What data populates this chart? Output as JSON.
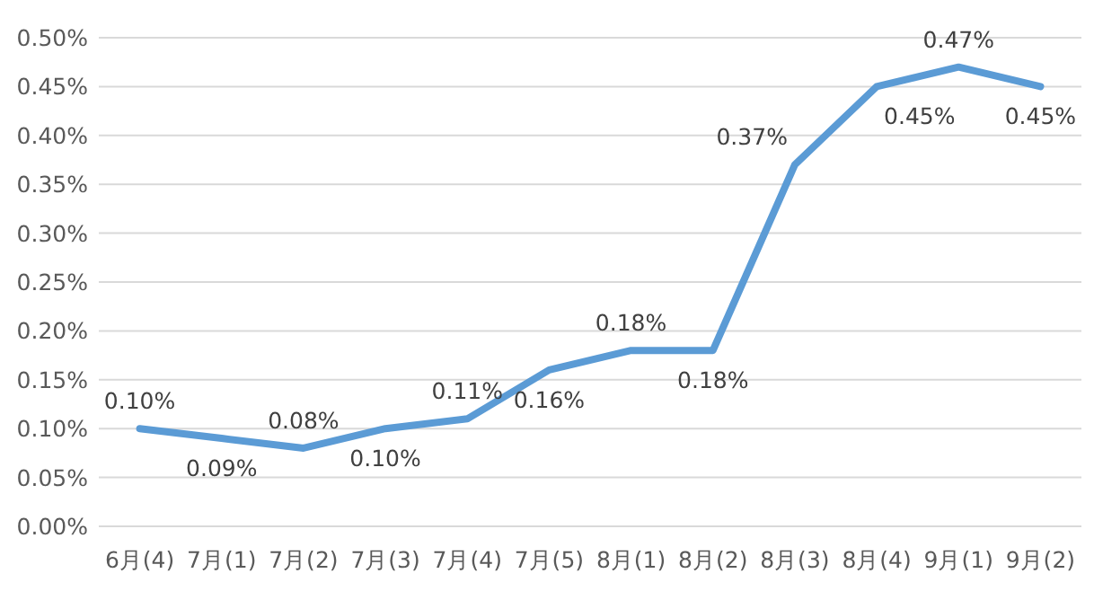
{
  "chart_data": {
    "type": "line",
    "categories": [
      "6月(4)",
      "7月(1)",
      "7月(2)",
      "7月(3)",
      "7月(4)",
      "7月(5)",
      "8月(1)",
      "8月(2)",
      "8月(3)",
      "8月(4)",
      "9月(1)",
      "9月(2)"
    ],
    "series": [
      {
        "color": "#5b9bd5",
        "values": [
          0.1,
          0.09,
          0.08,
          0.1,
          0.11,
          0.16,
          0.18,
          0.18,
          0.37,
          0.45,
          0.47,
          0.45
        ],
        "value_labels": [
          "0.10%",
          "0.09%",
          "0.08%",
          "0.10%",
          "0.11%",
          "0.16%",
          "0.18%",
          "0.18%",
          "0.37%",
          "0.45%",
          "0.47%",
          "0.45%"
        ]
      }
    ],
    "ylim": [
      0,
      0.5
    ],
    "yticks": [
      {
        "value": 0,
        "label": "0.00%"
      },
      {
        "value": 0.05,
        "label": "0.05%"
      },
      {
        "value": 0.1,
        "label": "0.10%"
      },
      {
        "value": 0.15,
        "label": "0.15%"
      },
      {
        "value": 0.2,
        "label": "0.20%"
      },
      {
        "value": 0.25,
        "label": "0.25%"
      },
      {
        "value": 0.3,
        "label": "0.30%"
      },
      {
        "value": 0.35,
        "label": "0.35%"
      },
      {
        "value": 0.4,
        "label": "0.40%"
      },
      {
        "value": 0.45,
        "label": "0.45%"
      },
      {
        "value": 0.5,
        "label": "0.50%"
      }
    ],
    "grid": "y",
    "marker": "none",
    "line_style": "solid"
  }
}
